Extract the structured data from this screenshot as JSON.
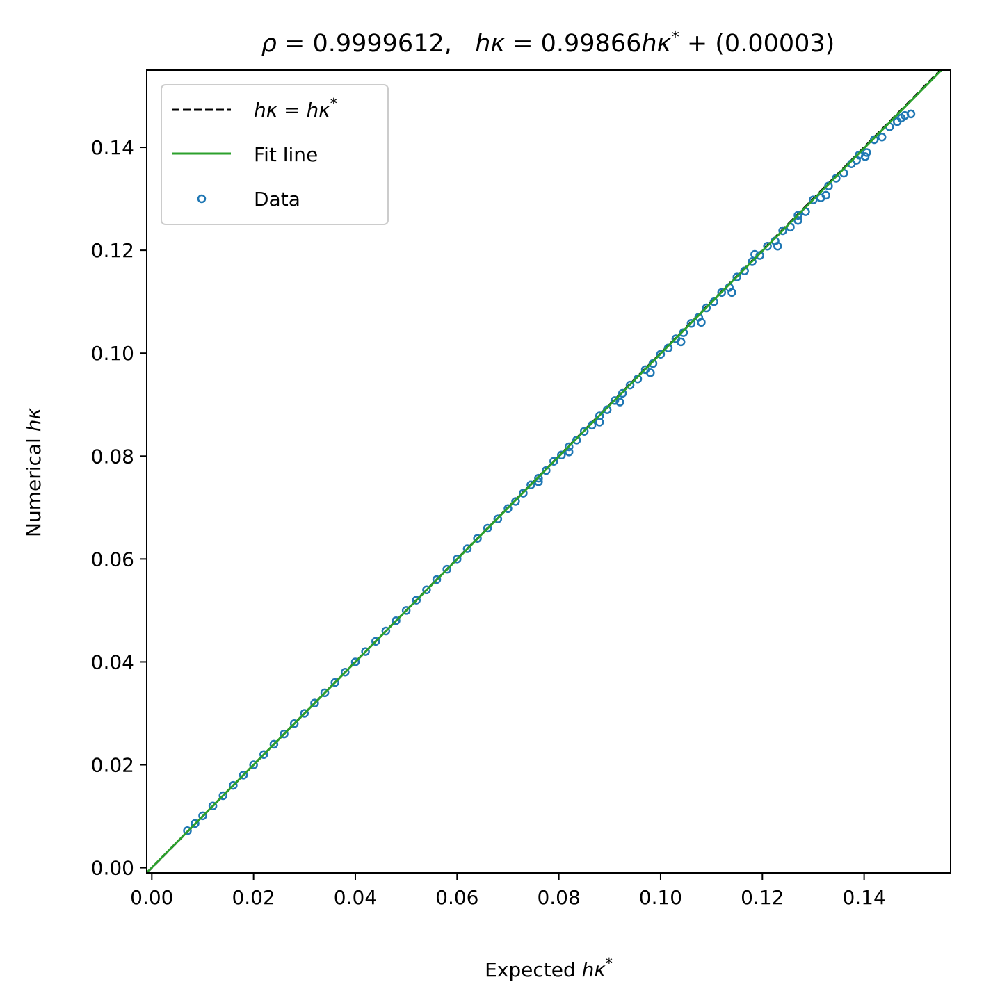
{
  "chart_data": {
    "type": "scatter",
    "title": {
      "rho_symbol": "ρ",
      "rho_text": " = 0.9999612,   ",
      "hk_symbol": "hκ",
      "mid_text": " = 0.99866",
      "hk_star_symbol": "hκ",
      "star": "*",
      "tail_text": " + (0.00003)"
    },
    "xlabel": {
      "text": "Expected ",
      "symbol": "hκ",
      "star": "*"
    },
    "ylabel": {
      "text": "Numerical ",
      "symbol": "hκ"
    },
    "xlim": [
      -0.001,
      0.157
    ],
    "ylim": [
      -0.001,
      0.155
    ],
    "x_ticks": [
      0.0,
      0.02,
      0.04,
      0.06,
      0.08,
      0.1,
      0.12,
      0.14
    ],
    "x_tick_labels": [
      "0.00",
      "0.02",
      "0.04",
      "0.06",
      "0.08",
      "0.10",
      "0.12",
      "0.14"
    ],
    "y_ticks": [
      0.0,
      0.02,
      0.04,
      0.06,
      0.08,
      0.1,
      0.12,
      0.14
    ],
    "y_tick_labels": [
      "0.00",
      "0.02",
      "0.04",
      "0.06",
      "0.08",
      "0.10",
      "0.12",
      "0.14"
    ],
    "grid": false,
    "legend_position": "top-left",
    "legend": [
      {
        "label_symbol": "hκ = hκ",
        "star": "*",
        "kind": "dashed-line",
        "color": "#000000"
      },
      {
        "label": "Fit line",
        "kind": "line",
        "color": "#2ca02c"
      },
      {
        "label": "Data",
        "kind": "hollow-marker",
        "color": "#1f77b4"
      }
    ],
    "reference_line": {
      "slope": 1.0,
      "intercept": 0.0,
      "color": "#000000",
      "style": "dashed"
    },
    "fit_line": {
      "slope": 0.99866,
      "intercept": 3e-05,
      "color": "#2ca02c"
    },
    "series": [
      {
        "name": "Data",
        "color": "#1f77b4",
        "marker": "hollow-circle",
        "x": [
          0.007,
          0.0085,
          0.01,
          0.012,
          0.014,
          0.016,
          0.018,
          0.02,
          0.022,
          0.024,
          0.026,
          0.028,
          0.03,
          0.032,
          0.034,
          0.036,
          0.038,
          0.04,
          0.042,
          0.044,
          0.046,
          0.048,
          0.05,
          0.052,
          0.054,
          0.056,
          0.058,
          0.06,
          0.062,
          0.064,
          0.066,
          0.068,
          0.07,
          0.0715,
          0.073,
          0.0745,
          0.076,
          0.0775,
          0.079,
          0.0805,
          0.082,
          0.0835,
          0.085,
          0.0865,
          0.088,
          0.0895,
          0.091,
          0.0925,
          0.094,
          0.0955,
          0.097,
          0.0985,
          0.1,
          0.1015,
          0.103,
          0.1045,
          0.106,
          0.1075,
          0.109,
          0.1105,
          0.112,
          0.1135,
          0.115,
          0.1165,
          0.118,
          0.1195,
          0.121,
          0.1225,
          0.124,
          0.1255,
          0.127,
          0.1285,
          0.13,
          0.1315,
          0.133,
          0.1345,
          0.136,
          0.1375,
          0.139,
          0.1405,
          0.142,
          0.1435,
          0.145,
          0.1465,
          0.148,
          0.1492,
          0.076,
          0.082,
          0.088,
          0.092,
          0.098,
          0.104,
          0.108,
          0.114,
          0.1185,
          0.123,
          0.127,
          0.1325,
          0.1385,
          0.1402,
          0.1473
        ],
        "y": [
          0.0072,
          0.0086,
          0.0101,
          0.012,
          0.014,
          0.016,
          0.018,
          0.02,
          0.022,
          0.024,
          0.026,
          0.028,
          0.03,
          0.032,
          0.034,
          0.036,
          0.038,
          0.04,
          0.042,
          0.044,
          0.046,
          0.048,
          0.05,
          0.052,
          0.054,
          0.056,
          0.058,
          0.06,
          0.062,
          0.064,
          0.066,
          0.0678,
          0.0698,
          0.0712,
          0.0728,
          0.0744,
          0.0757,
          0.0772,
          0.079,
          0.0802,
          0.0818,
          0.0831,
          0.0848,
          0.086,
          0.0878,
          0.089,
          0.0908,
          0.0922,
          0.0938,
          0.095,
          0.0968,
          0.098,
          0.0998,
          0.101,
          0.1028,
          0.104,
          0.1058,
          0.107,
          0.1088,
          0.11,
          0.1118,
          0.1128,
          0.1148,
          0.116,
          0.1178,
          0.119,
          0.1208,
          0.1218,
          0.1238,
          0.1245,
          0.1268,
          0.1275,
          0.1298,
          0.1302,
          0.1325,
          0.134,
          0.135,
          0.1368,
          0.1385,
          0.139,
          0.1415,
          0.142,
          0.144,
          0.145,
          0.1462,
          0.1465,
          0.075,
          0.0808,
          0.0866,
          0.0905,
          0.0962,
          0.1022,
          0.106,
          0.1118,
          0.1192,
          0.1208,
          0.1258,
          0.1307,
          0.1375,
          0.1382,
          0.1457
        ]
      }
    ]
  }
}
